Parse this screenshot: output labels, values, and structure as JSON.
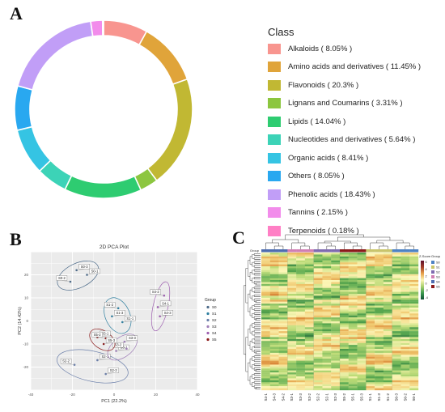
{
  "panels": {
    "a": "A",
    "b": "B",
    "c": "C"
  },
  "chart_data": [
    {
      "type": "pie",
      "variant": "donut",
      "legend_title": "Class",
      "legend_position": "right",
      "slices": [
        {
          "label": "Alkaloids ( 8.05% )",
          "value": 8.05,
          "color": "#F8958F"
        },
        {
          "label": "Amino acids and derivatives ( 11.45% )",
          "value": 11.45,
          "color": "#E0A43A"
        },
        {
          "label": "Flavonoids ( 20.3% )",
          "value": 20.3,
          "color": "#C1B833"
        },
        {
          "label": "Lignans and Coumarins ( 3.31% )",
          "value": 3.31,
          "color": "#8CC63F"
        },
        {
          "label": "Lipids ( 14.04% )",
          "value": 14.04,
          "color": "#2ECC71"
        },
        {
          "label": "Nucleotides and derivatives ( 5.64% )",
          "value": 5.64,
          "color": "#3CD3B7"
        },
        {
          "label": "Organic acids ( 8.41% )",
          "value": 8.41,
          "color": "#35C4E3"
        },
        {
          "label": "Others ( 8.05% )",
          "value": 8.05,
          "color": "#29A8F0"
        },
        {
          "label": "Phenolic acids ( 18.43% )",
          "value": 18.43,
          "color": "#C19EF7"
        },
        {
          "label": "Tannins ( 2.15% )",
          "value": 2.15,
          "color": "#F28CEB"
        },
        {
          "label": "Terpenoids ( 0.18% )",
          "value": 0.18,
          "color": "#FF7FC5"
        }
      ]
    },
    {
      "type": "scatter",
      "title": "2D PCA Plot",
      "xlabel": "PC1 (22.2%)",
      "ylabel": "PC2 (14.42%)",
      "xlim": [
        -40,
        40
      ],
      "ylim": [
        -30,
        30
      ],
      "xticks": [
        "-40",
        "-20",
        "0",
        "20",
        "40"
      ],
      "yticks": [
        "20",
        "10",
        "0",
        "-10",
        "-20"
      ],
      "grid": true,
      "legend_title": "Group",
      "legend_position": "right",
      "groups": [
        {
          "name": "S0",
          "color": "#4D6B8A",
          "points": [
            {
              "label": "S0-1",
              "x": -13,
              "y": 20
            },
            {
              "label": "S0-2",
              "x": -21,
              "y": 17
            },
            {
              "label": "S0-3",
              "x": -18,
              "y": 22
            }
          ]
        },
        {
          "name": "S1",
          "color": "#2E7FA0",
          "points": [
            {
              "label": "S1-1",
              "x": 4,
              "y": -0.5
            },
            {
              "label": "S1-2",
              "x": 2,
              "y": 5.5
            },
            {
              "label": "S1-3",
              "x": -1,
              "y": 2
            }
          ]
        },
        {
          "name": "S2",
          "color": "#6B7FAA",
          "points": [
            {
              "label": "S2-1",
              "x": -8,
              "y": -17
            },
            {
              "label": "S2-2",
              "x": -19,
              "y": -19
            },
            {
              "label": "S2-3",
              "x": -4,
              "y": -23
            }
          ]
        },
        {
          "name": "S3",
          "color": "#A07FB8",
          "points": [
            {
              "label": "S3-1",
              "x": 1,
              "y": -13
            },
            {
              "label": "S3-2",
              "x": 6,
              "y": -12
            },
            {
              "label": "S3-3",
              "x": 5,
              "y": -9
            }
          ]
        },
        {
          "name": "S4",
          "color": "#9E5FB0",
          "points": [
            {
              "label": "S4-1",
              "x": 21,
              "y": 6
            },
            {
              "label": "S4-2",
              "x": 24,
              "y": 11
            },
            {
              "label": "S4-3",
              "x": 22,
              "y": 2
            }
          ]
        },
        {
          "name": "S5",
          "color": "#8B1A1A",
          "points": [
            {
              "label": "S5-1",
              "x": -8,
              "y": -7
            },
            {
              "label": "S5-2",
              "x": -4,
              "y": -7.5
            },
            {
              "label": "S5-3",
              "x": -5,
              "y": -10
            }
          ]
        }
      ]
    },
    {
      "type": "heatmap",
      "row_annotation_label": "Group",
      "columns": [
        "S4-1",
        "S4-3",
        "S4-2",
        "S3-1",
        "S3-3",
        "S3-2",
        "S2-2",
        "S2-1",
        "S2-3",
        "S5-2",
        "S5-1",
        "S5-3",
        "S1-1",
        "S1-3",
        "S1-2",
        "S0-3",
        "S0-2",
        "S0-1"
      ],
      "column_groups": [
        "S4",
        "S4",
        "S4",
        "S3",
        "S3",
        "S3",
        "S2",
        "S2",
        "S2",
        "S5",
        "S5",
        "S5",
        "S1",
        "S1",
        "S1",
        "S0",
        "S0",
        "S0"
      ],
      "colorbar": {
        "title": "Z-Score",
        "ticks": [
          "6",
          "4",
          "2",
          "0",
          "-2",
          "-4"
        ],
        "colors": [
          "#5E0E2E",
          "#A33F2A",
          "#E8A24A",
          "#FCF6B6",
          "#A8D06E",
          "#3B9A4E",
          "#0F5034"
        ]
      },
      "legend_title": "Group",
      "legend_position": "right",
      "group_legend": [
        {
          "name": "S0",
          "color": "#4E83C4"
        },
        {
          "name": "S1",
          "color": "#C9C56B"
        },
        {
          "name": "S2",
          "color": "#7F6BB0"
        },
        {
          "name": "S3",
          "color": "#D07FB3"
        },
        {
          "name": "S4",
          "color": "#4E6DB0"
        },
        {
          "name": "S5",
          "color": "#8B1A1A"
        }
      ]
    }
  ]
}
